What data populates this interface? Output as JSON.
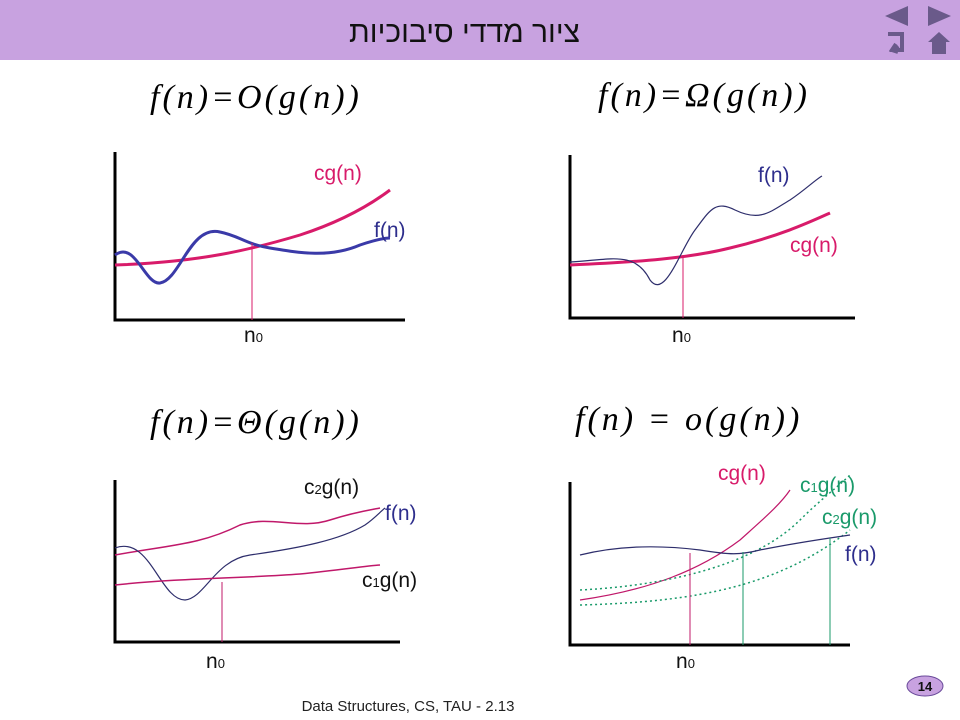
{
  "header": {
    "title": "ציור מדדי סיבוכיות"
  },
  "panels": [
    {
      "formula": "f(n)=O(g(n))",
      "labels": {
        "cg": "cg(n)",
        "f": "f(n)",
        "n0": {
          "base": "n",
          "sub": "0"
        }
      }
    },
    {
      "formula": "f(n)=Ω(g(n))",
      "labels": {
        "f": "f(n)",
        "cg": "cg(n)",
        "n0": {
          "base": "n",
          "sub": "0"
        }
      }
    },
    {
      "formula": "f(n)=Θ(g(n))",
      "labels": {
        "c2g": {
          "pre": "c",
          "sub": "2",
          "post": "g(n)"
        },
        "f": "f(n)",
        "c1g": {
          "pre": "c",
          "sub": "1",
          "post": "g(n)"
        },
        "n0": {
          "base": "n",
          "sub": "0"
        }
      }
    },
    {
      "formula": "f(n) = o(g(n))",
      "labels": {
        "cg": "cg(n)",
        "c1g": {
          "pre": "c",
          "sub": "1",
          "post": "g(n)"
        },
        "c2g": {
          "pre": "c",
          "sub": "2",
          "post": "g(n)"
        },
        "f": "f(n)",
        "n0": {
          "base": "n",
          "sub": "0"
        }
      }
    }
  ],
  "footer": {
    "text": "Data Structures, CS, TAU - 2.13",
    "page": 14
  }
}
